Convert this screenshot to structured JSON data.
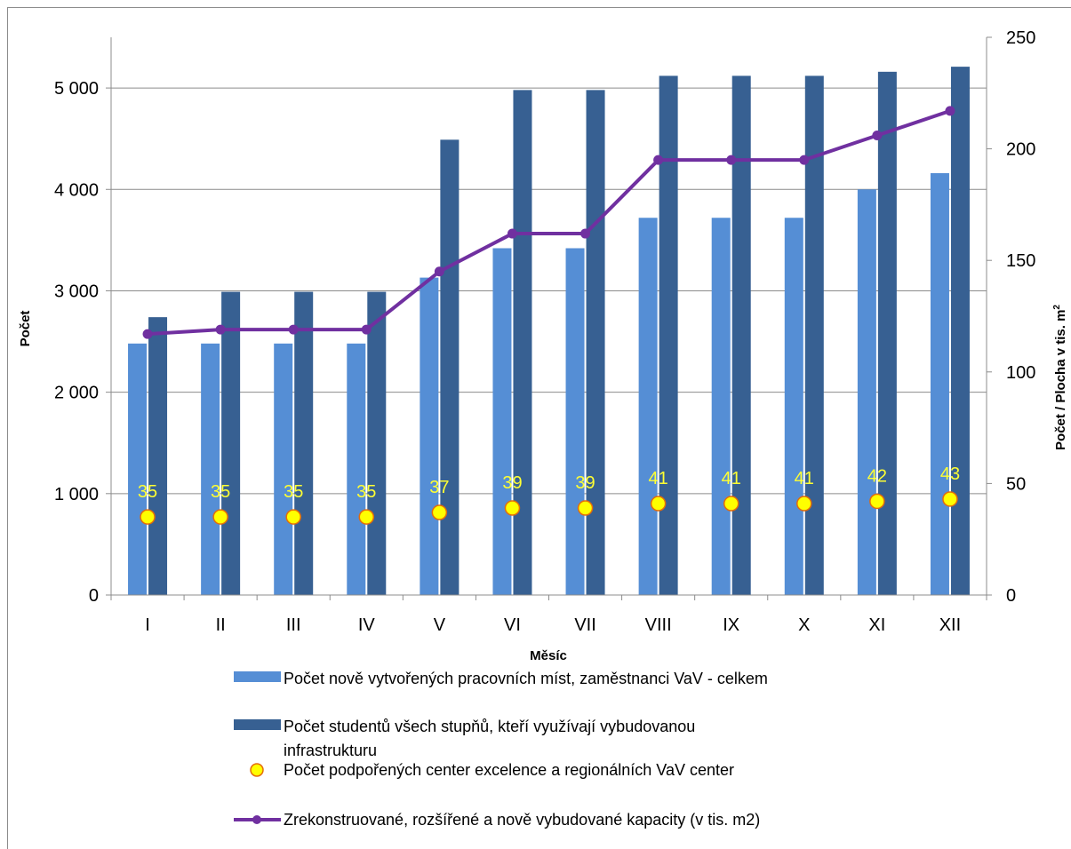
{
  "chart_data": {
    "type": "bar",
    "categories": [
      "I",
      "II",
      "III",
      "IV",
      "V",
      "VI",
      "VII",
      "VIII",
      "IX",
      "X",
      "XI",
      "XII"
    ],
    "xlabel": "Měsíc",
    "ylabel": "Počet",
    "y2label": "Počet / Plocha v tis. m",
    "y2label_superscript": "2",
    "ylim": [
      0,
      5500
    ],
    "y2lim": [
      0,
      250
    ],
    "yticks": [
      0,
      1000,
      2000,
      3000,
      4000,
      5000
    ],
    "ytick_labels": [
      "0",
      "1 000",
      "2 000",
      "3 000",
      "4 000",
      "5 000"
    ],
    "y2ticks": [
      0,
      50,
      100,
      150,
      200,
      250
    ],
    "y2tick_labels": [
      "0",
      "50",
      "100",
      "150",
      "200",
      "250"
    ],
    "grid": true,
    "legend_position": "bottom",
    "series": [
      {
        "name": "Počet nově vytvořených pracovních míst, zaměstnanci VaV - celkem",
        "type": "bar",
        "axis": "left",
        "color": "#558ed5",
        "values": [
          2480,
          2480,
          2480,
          2480,
          3130,
          3420,
          3420,
          3720,
          3720,
          3720,
          4000,
          4160
        ]
      },
      {
        "name": "Počet studentů všech stupňů, kteří využívají vybudovanou infrastrukturu",
        "legend_lines": [
          "Počet studentů všech stupňů, kteří využívají vybudovanou",
          "infrastrukturu"
        ],
        "type": "bar",
        "axis": "left",
        "color": "#376092",
        "values": [
          2740,
          2990,
          2990,
          2990,
          4490,
          4980,
          4980,
          5120,
          5120,
          5120,
          5160,
          5210
        ]
      },
      {
        "name": "Počet podpořených center excelence a regionálních VaV center",
        "type": "scatter",
        "axis": "right",
        "color": "#ffff00",
        "edge_color": "#e46c0a",
        "values": [
          35,
          35,
          35,
          35,
          37,
          39,
          39,
          41,
          41,
          41,
          42,
          43
        ],
        "data_labels": [
          "35",
          "35",
          "35",
          "35",
          "37",
          "39",
          "39",
          "41",
          "41",
          "41",
          "42",
          "43"
        ],
        "label_color": "#ffff33"
      },
      {
        "name": "Zrekonstruované, rozšířené a nově vybudované kapacity (v tis. m2)",
        "type": "line",
        "axis": "right",
        "color": "#7030a0",
        "values": [
          117,
          119,
          119,
          119,
          145,
          162,
          162,
          195,
          195,
          195,
          206,
          217
        ]
      }
    ]
  }
}
